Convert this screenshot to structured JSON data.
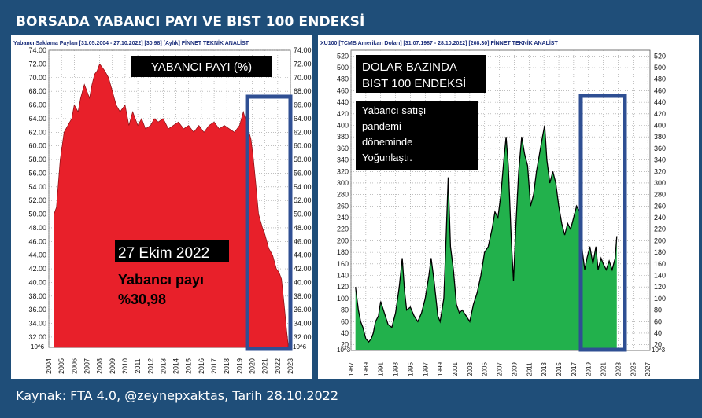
{
  "page": {
    "title": "BORSADA YABANCI PAYI VE BIST 100 ENDEKSİ",
    "source": "Kaynak: FTA 4.0, @zeynepxaktas, Tarih 28.10.2022"
  },
  "colors": {
    "background": "#1f4e79",
    "left_fill": "#e8202a",
    "right_fill": "#22b14c",
    "box_outline": "#2f4f93"
  },
  "chart_data": [
    {
      "type": "area",
      "header": "Yabancı Saklama Payları   [31.05.2004 - 27.10.2022]   [30.98]   [Aylık]   FİNNET TEKNİK ANALİST",
      "title": "YABANCI PAYI (%)",
      "scale_note": "10^6",
      "x_ticks": [
        "2004",
        "2005",
        "2006",
        "2007",
        "2008",
        "2009",
        "2010",
        "2011",
        "2012",
        "2013",
        "2014",
        "2015",
        "2016",
        "2017",
        "2018",
        "2019",
        "2020",
        "2021",
        "2022",
        "2023"
      ],
      "y_ticks": [
        "32.00",
        "34.00",
        "36.00",
        "38.00",
        "40.00",
        "42.00",
        "44.00",
        "46.00",
        "48.00",
        "50.00",
        "52.00",
        "54.00",
        "56.00",
        "58.00",
        "60.00",
        "62.00",
        "64.00",
        "66.00",
        "68.00",
        "70.00",
        "72.00",
        "74.00"
      ],
      "ylim": [
        30.5,
        74
      ],
      "x": [
        2004.4,
        2004.6,
        2004.9,
        2005.2,
        2005.5,
        2005.8,
        2006.0,
        2006.3,
        2006.5,
        2006.8,
        2007.0,
        2007.2,
        2007.4,
        2007.6,
        2007.8,
        2008.0,
        2008.2,
        2008.4,
        2008.7,
        2009.0,
        2009.3,
        2009.6,
        2010.0,
        2010.3,
        2010.6,
        2011.0,
        2011.3,
        2011.6,
        2012.0,
        2012.3,
        2012.6,
        2013.0,
        2013.4,
        2013.8,
        2014.2,
        2014.6,
        2015.0,
        2015.4,
        2015.8,
        2016.2,
        2016.6,
        2017.0,
        2017.4,
        2017.8,
        2018.2,
        2018.6,
        2019.0,
        2019.3,
        2019.6,
        2019.9,
        2020.1,
        2020.3,
        2020.5,
        2020.8,
        2021.0,
        2021.3,
        2021.6,
        2021.9,
        2022.1,
        2022.3,
        2022.5,
        2022.7,
        2022.82
      ],
      "values": [
        50.0,
        51.0,
        58.0,
        62.0,
        63.0,
        64.0,
        66.0,
        65.0,
        67.0,
        69.0,
        68.0,
        67.0,
        69.0,
        70.5,
        71.0,
        72.0,
        71.5,
        71.0,
        70.0,
        68.0,
        66.0,
        65.0,
        66.0,
        63.0,
        65.0,
        63.0,
        64.0,
        62.5,
        63.0,
        64.0,
        63.5,
        64.0,
        62.5,
        63.0,
        63.5,
        62.5,
        63.0,
        62.0,
        63.0,
        62.0,
        63.0,
        63.5,
        62.5,
        63.0,
        62.5,
        62.0,
        63.0,
        65.0,
        63.0,
        61.0,
        58.0,
        54.0,
        50.0,
        48.0,
        47.0,
        45.0,
        44.0,
        42.0,
        41.5,
        40.5,
        37.0,
        33.0,
        30.98
      ],
      "highlight_x": [
        2019.6,
        2023.0
      ],
      "annotation": {
        "date": "27 Ekim 2022",
        "label": "Yabancı payı",
        "value": "%30,98"
      }
    },
    {
      "type": "area",
      "header": "XU100   [TCMB Amerikan Doları]   [31.07.1987 - 28.10.2022]   [208.30]   FİNNET TEKNİK ANALİST",
      "title_line1": "DOLAR BAZINDA",
      "title_line2": "BIST 100 ENDEKSİ",
      "scale_note": "10^3",
      "note": [
        "Yabancı satışı",
        "pandemi",
        "döneminde",
        "Yoğunlaştı."
      ],
      "x_ticks": [
        "1987",
        "1989",
        "1991",
        "1993",
        "1995",
        "1997",
        "1999",
        "2001",
        "2003",
        "2005",
        "2007",
        "2009",
        "2011",
        "2013",
        "2015",
        "2017",
        "2019",
        "2021",
        "2023",
        "2025",
        "2027"
      ],
      "y_ticks": [
        "20",
        "40",
        "60",
        "80",
        "100",
        "120",
        "140",
        "160",
        "180",
        "200",
        "220",
        "240",
        "260",
        "280",
        "300",
        "320",
        "340",
        "360",
        "380",
        "400",
        "420",
        "440",
        "460",
        "480",
        "500",
        "520"
      ],
      "ylim": [
        10,
        530
      ],
      "x": [
        1987.6,
        1988.0,
        1988.3,
        1988.6,
        1989.0,
        1989.4,
        1989.7,
        1990.0,
        1990.3,
        1990.7,
        1991.0,
        1991.5,
        1992.0,
        1992.5,
        1993.0,
        1993.5,
        1993.9,
        1994.2,
        1994.5,
        1995.0,
        1995.5,
        1996.0,
        1996.5,
        1997.0,
        1997.5,
        1997.8,
        1998.2,
        1998.7,
        1999.0,
        1999.5,
        1999.8,
        2000.1,
        2000.4,
        2000.8,
        2001.2,
        2001.6,
        2002.0,
        2002.5,
        2003.0,
        2003.5,
        2004.0,
        2004.5,
        2005.0,
        2005.5,
        2006.0,
        2006.4,
        2006.8,
        2007.2,
        2007.6,
        2007.9,
        2008.2,
        2008.6,
        2008.9,
        2009.2,
        2009.6,
        2010.0,
        2010.4,
        2010.8,
        2011.2,
        2011.6,
        2012.0,
        2012.4,
        2012.8,
        2013.1,
        2013.4,
        2013.8,
        2014.2,
        2014.6,
        2015.0,
        2015.4,
        2015.8,
        2016.2,
        2016.6,
        2017.0,
        2017.4,
        2017.8,
        2018.2,
        2018.5,
        2018.8,
        2019.2,
        2019.6,
        2020.0,
        2020.3,
        2020.7,
        2021.0,
        2021.4,
        2021.8,
        2022.2,
        2022.6,
        2022.82
      ],
      "values": [
        120,
        80,
        60,
        50,
        30,
        25,
        30,
        40,
        60,
        70,
        95,
        75,
        55,
        50,
        75,
        120,
        170,
        115,
        80,
        85,
        70,
        60,
        75,
        100,
        140,
        170,
        130,
        70,
        60,
        100,
        200,
        310,
        190,
        150,
        90,
        75,
        80,
        70,
        60,
        90,
        110,
        140,
        180,
        190,
        220,
        250,
        240,
        280,
        340,
        380,
        330,
        200,
        130,
        220,
        320,
        380,
        350,
        330,
        260,
        280,
        320,
        350,
        380,
        400,
        340,
        300,
        320,
        300,
        260,
        230,
        210,
        230,
        220,
        240,
        260,
        250,
        180,
        150,
        170,
        190,
        160,
        190,
        150,
        170,
        160,
        150,
        165,
        150,
        170,
        208
      ]
    }
  ]
}
